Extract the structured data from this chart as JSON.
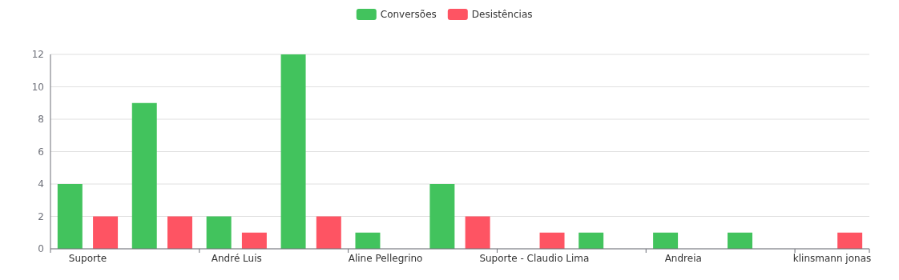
{
  "chart_data": {
    "type": "bar",
    "categories": [
      "Suporte",
      null,
      "André Luis",
      null,
      "Aline Pellegrino",
      null,
      "Suporte - Claudio Lima",
      null,
      "Andreia",
      null,
      "klinsmann jonas"
    ],
    "series": [
      {
        "name": "Conversões",
        "color": "#42c35d",
        "values": [
          4,
          9,
          2,
          12,
          1,
          4,
          0,
          1,
          1,
          1,
          0
        ]
      },
      {
        "name": "Desistências",
        "color": "#fe5463",
        "values": [
          2,
          2,
          1,
          2,
          0,
          2,
          1,
          0,
          0,
          0,
          1
        ]
      }
    ],
    "ylim": [
      0,
      12
    ],
    "yticks": [
      0,
      2,
      4,
      6,
      8,
      10,
      12
    ],
    "grid": "y",
    "legend": "top"
  }
}
